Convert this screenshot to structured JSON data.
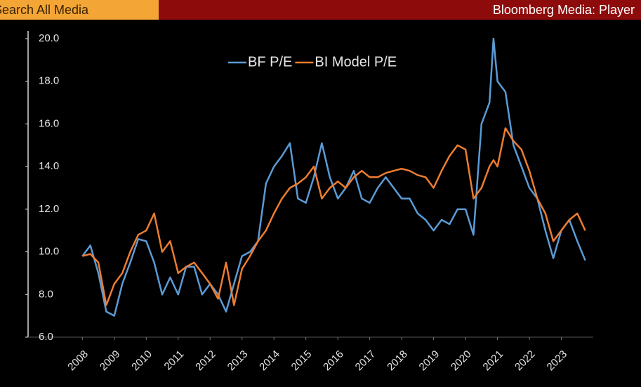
{
  "header": {
    "search": "Search All Media",
    "title": "Bloomberg Media: Player"
  },
  "chart_data": {
    "type": "line",
    "x": [
      2008,
      2008.25,
      2008.5,
      2008.75,
      2009,
      2009.25,
      2009.5,
      2009.75,
      2010,
      2010.25,
      2010.5,
      2010.75,
      2011,
      2011.25,
      2011.5,
      2011.75,
      2012,
      2012.25,
      2012.5,
      2012.75,
      2013,
      2013.25,
      2013.5,
      2013.75,
      2014,
      2014.25,
      2014.5,
      2014.75,
      2015,
      2015.25,
      2015.5,
      2015.75,
      2016,
      2016.25,
      2016.5,
      2016.75,
      2017,
      2017.25,
      2017.5,
      2017.75,
      2018,
      2018.25,
      2018.5,
      2018.75,
      2019,
      2019.25,
      2019.5,
      2019.75,
      2020,
      2020.25,
      2020.5,
      2020.75,
      2020.875,
      2021,
      2021.25,
      2021.5,
      2021.75,
      2022,
      2022.25,
      2022.5,
      2022.75,
      2023,
      2023.25,
      2023.5,
      2023.75
    ],
    "series": [
      {
        "name": "BF P/E",
        "color": "#5b9bd5",
        "values": [
          9.8,
          10.3,
          9.0,
          7.2,
          7.0,
          8.5,
          9.5,
          10.6,
          10.5,
          9.5,
          8.0,
          8.8,
          8.0,
          9.3,
          9.3,
          8.0,
          8.5,
          8.0,
          7.2,
          8.5,
          9.8,
          10.0,
          10.5,
          13.2,
          14.0,
          14.5,
          15.1,
          12.5,
          12.3,
          13.5,
          15.1,
          13.5,
          12.5,
          13.0,
          13.8,
          12.5,
          12.3,
          13.0,
          13.5,
          13.0,
          12.5,
          12.5,
          11.8,
          11.5,
          11.0,
          11.5,
          11.3,
          12.0,
          12.0,
          10.8,
          16.0,
          17.0,
          20.0,
          18.0,
          17.5,
          15.0,
          14.0,
          13.0,
          12.5,
          11.0,
          9.7,
          11.0,
          11.5,
          10.5,
          9.6
        ]
      },
      {
        "name": "BI Model P/E",
        "color": "#ed7d31",
        "values": [
          9.8,
          9.9,
          9.5,
          7.5,
          8.5,
          9.0,
          10.0,
          10.8,
          11.0,
          11.8,
          10.0,
          10.5,
          9.0,
          9.3,
          9.5,
          9.0,
          8.5,
          7.8,
          9.5,
          7.5,
          9.2,
          9.8,
          10.5,
          11.0,
          11.8,
          12.5,
          13.0,
          13.2,
          13.5,
          14.0,
          12.5,
          13.0,
          13.3,
          13.0,
          13.5,
          13.8,
          13.5,
          13.5,
          13.7,
          13.8,
          13.9,
          13.8,
          13.6,
          13.5,
          13.0,
          13.8,
          14.5,
          15.0,
          14.8,
          12.5,
          13.0,
          14.0,
          14.3,
          14.0,
          15.8,
          15.2,
          14.8,
          13.8,
          12.5,
          11.8,
          10.5,
          11.0,
          11.5,
          11.8,
          11.0
        ]
      }
    ],
    "xlim": [
      2006.3,
      2024
    ],
    "xticks": [
      2008,
      2009,
      2010,
      2011,
      2012,
      2013,
      2014,
      2015,
      2016,
      2017,
      2018,
      2019,
      2020,
      2021,
      2022,
      2023
    ],
    "ylim": [
      6,
      20
    ],
    "yticks": [
      {
        "value": 6,
        "label": "6.0"
      },
      {
        "value": 8,
        "label": "8.0"
      },
      {
        "value": 10,
        "label": "10.0"
      },
      {
        "value": 12,
        "label": "12.0"
      },
      {
        "value": 14,
        "label": "14.0"
      },
      {
        "value": 16,
        "label": "16.0"
      },
      {
        "value": 18,
        "label": "18.0"
      },
      {
        "value": 20,
        "label": "20.0"
      }
    ],
    "legend": "top"
  }
}
